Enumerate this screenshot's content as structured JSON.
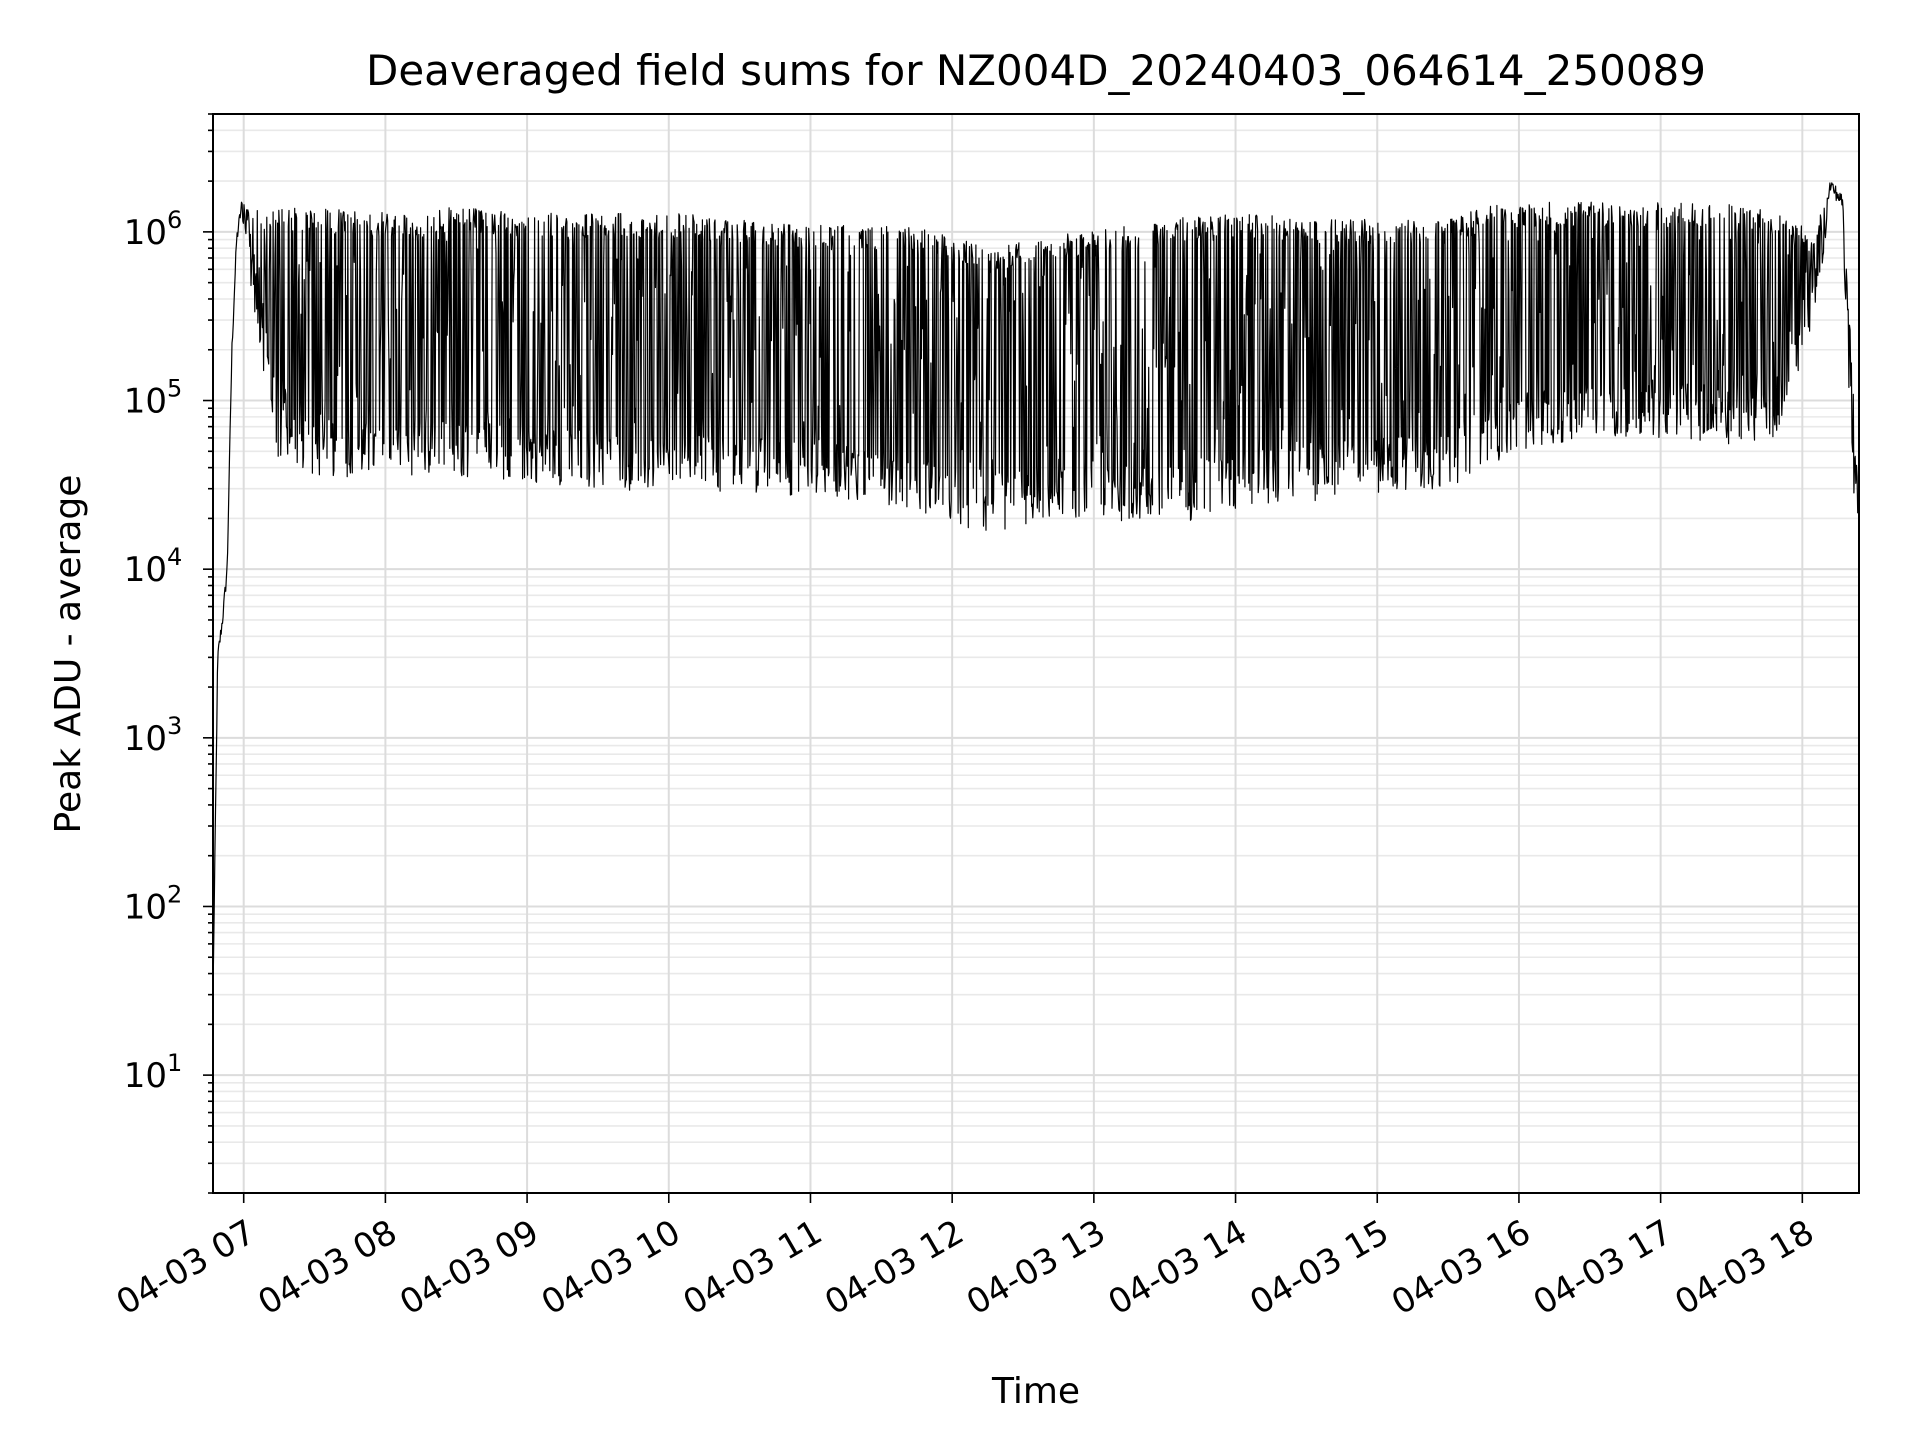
{
  "chart_data": {
    "type": "line",
    "title": "Deaveraged field sums for NZ004D_20240403_064614_250089",
    "xlabel": "Time",
    "ylabel": "Peak ADU - average",
    "x_scale": "time",
    "y_scale": "log",
    "xlim": [
      "2024-04-03 06:47",
      "2024-04-03 18:24"
    ],
    "ylim": [
      2,
      5000000
    ],
    "x_ticks": [
      "04-03 07",
      "04-03 08",
      "04-03 09",
      "04-03 10",
      "04-03 11",
      "04-03 12",
      "04-03 13",
      "04-03 14",
      "04-03 15",
      "04-03 16",
      "04-03 17",
      "04-03 18"
    ],
    "y_ticks": [
      {
        "base": "10",
        "exp": "1"
      },
      {
        "base": "10",
        "exp": "2"
      },
      {
        "base": "10",
        "exp": "3"
      },
      {
        "base": "10",
        "exp": "4"
      },
      {
        "base": "10",
        "exp": "5"
      },
      {
        "base": "10",
        "exp": "6"
      }
    ],
    "grid": true,
    "legend": "none",
    "line_color": "#000000",
    "series": [
      {
        "x": [
          "06:47",
          "06:49",
          "06:51",
          "06:53",
          "06:55",
          "06:57",
          "06:59",
          "07:02",
          "07:07",
          "07:15",
          "07:30",
          "08:00",
          "08:30",
          "09:00",
          "09:30",
          "10:00",
          "10:30",
          "11:00",
          "11:30",
          "12:00",
          "12:15",
          "12:30",
          "12:45",
          "13:00",
          "13:30",
          "14:00",
          "14:30",
          "15:00",
          "15:30",
          "15:45",
          "16:00",
          "16:30",
          "17:00",
          "17:30",
          "17:50",
          "18:05",
          "18:12",
          "18:17",
          "18:21",
          "18:24"
        ],
        "peak": [
          30,
          3000,
          5000,
          10000,
          200000,
          900000,
          1400000,
          1500000,
          1300000,
          1400000,
          1400000,
          1300000,
          1400000,
          1300000,
          1300000,
          1300000,
          1200000,
          1100000,
          1100000,
          1000000,
          800000,
          900000,
          1000000,
          1000000,
          1200000,
          1300000,
          1200000,
          1200000,
          1200000,
          1400000,
          1500000,
          1500000,
          1500000,
          1500000,
          1400000,
          1000000,
          1900000,
          1500000,
          200000,
          20000
        ],
        "trough": [
          30,
          3000,
          5000,
          10000,
          200000,
          800000,
          1000000,
          600000,
          200000,
          40000,
          35000,
          35000,
          35000,
          33000,
          30000,
          28000,
          28000,
          27000,
          25000,
          18000,
          16000,
          18000,
          20000,
          20000,
          18000,
          22000,
          25000,
          28000,
          30000,
          40000,
          50000,
          60000,
          60000,
          55000,
          60000,
          300000,
          1400000,
          1200000,
          30000,
          16000
        ]
      }
    ]
  }
}
